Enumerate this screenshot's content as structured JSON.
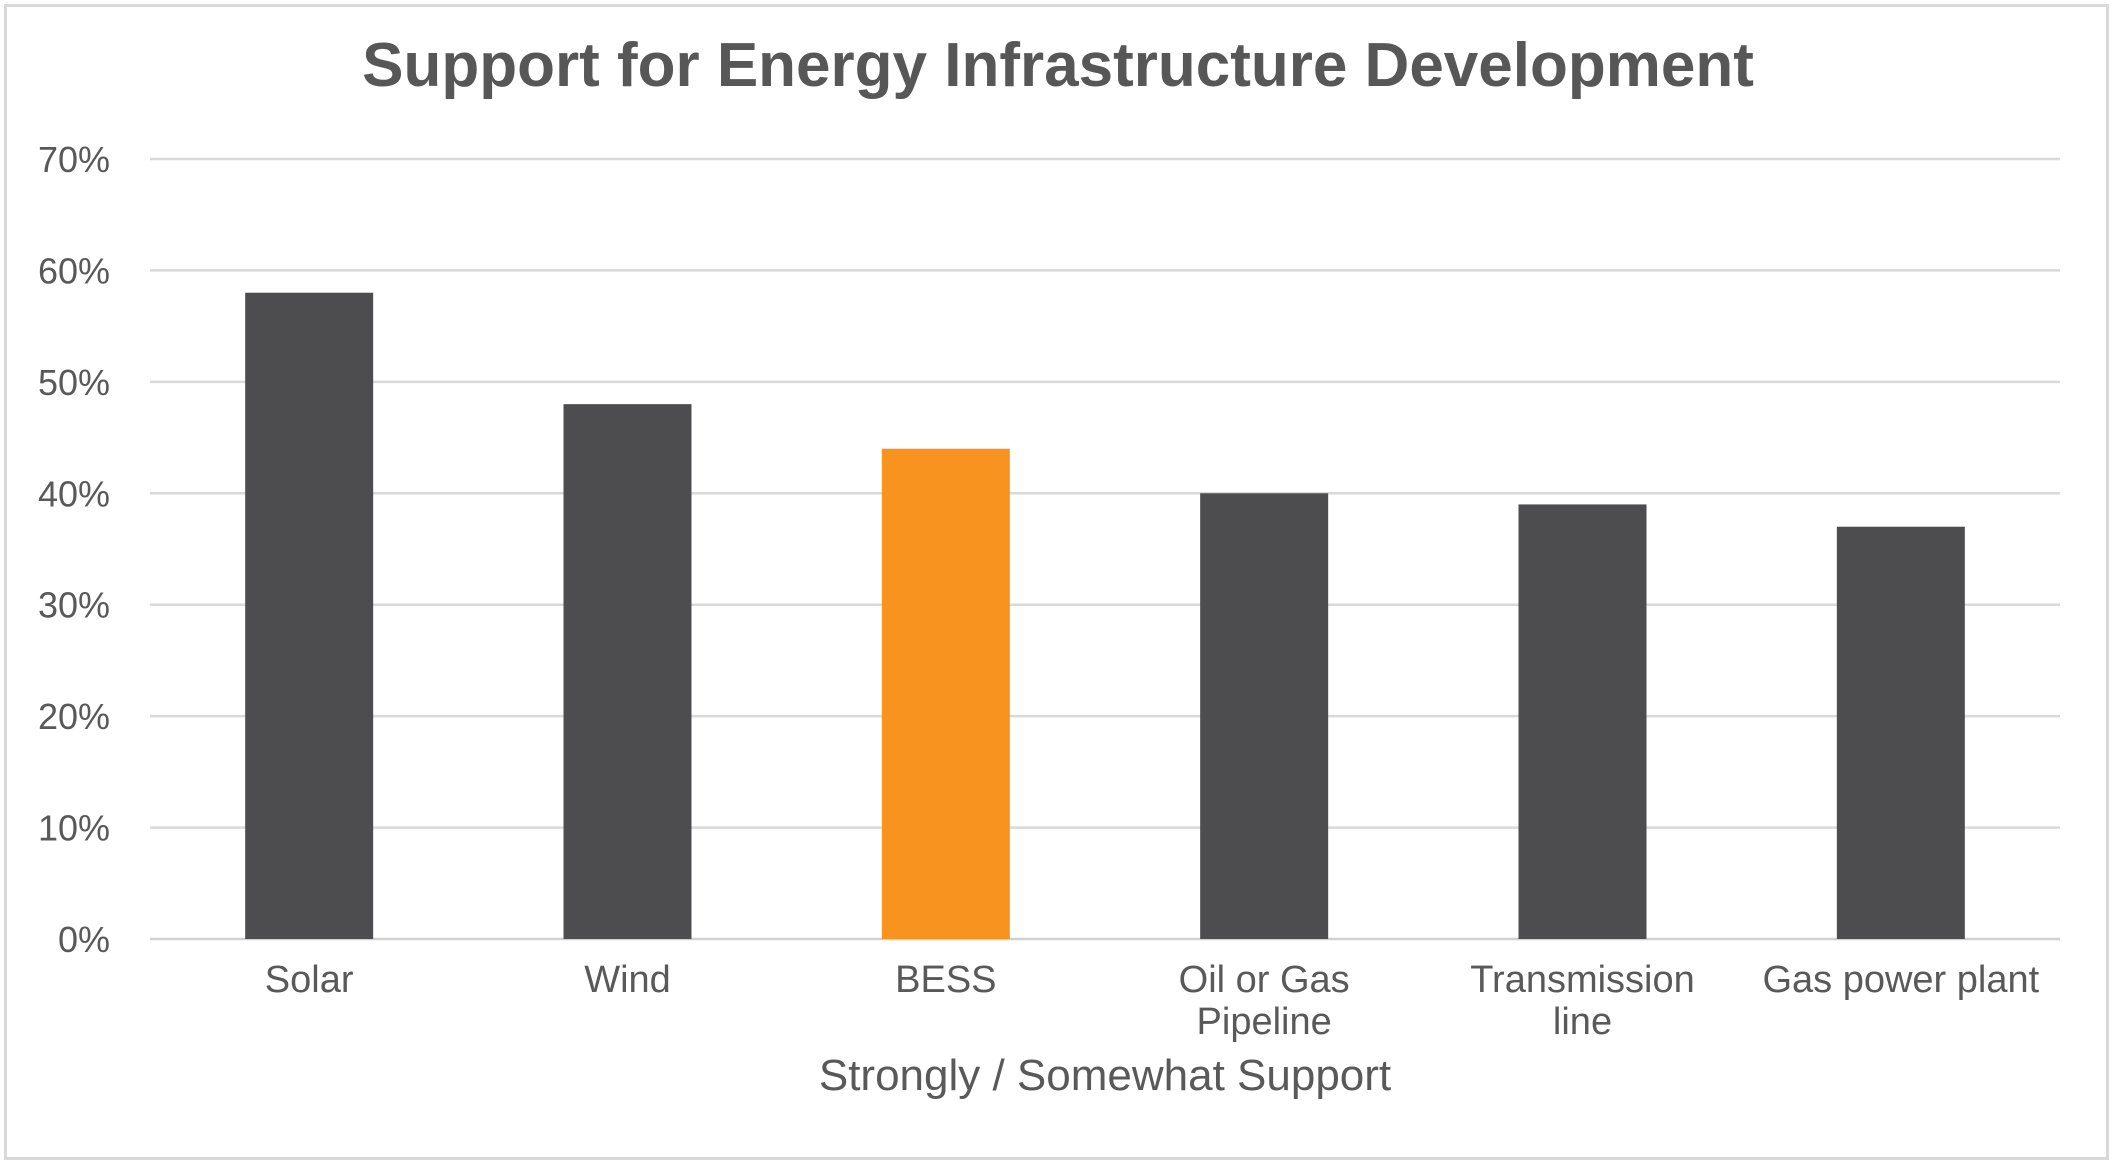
{
  "chart_data": {
    "type": "bar",
    "title": "Support for Energy Infrastructure Development",
    "xlabel": "Strongly / Somewhat Support",
    "ylabel": "",
    "categories": [
      "Solar",
      "Wind",
      "BESS",
      "Oil or Gas Pipeline",
      "Transmission line",
      "Gas power plant"
    ],
    "category_lines": [
      [
        "Solar"
      ],
      [
        "Wind"
      ],
      [
        "BESS"
      ],
      [
        "Oil or Gas",
        "Pipeline"
      ],
      [
        "Transmission",
        "line"
      ],
      [
        "Gas power plant"
      ]
    ],
    "values": [
      0.58,
      0.48,
      0.44,
      0.4,
      0.39,
      0.37
    ],
    "ylim": [
      0,
      0.7
    ],
    "yticks": [
      0,
      0.1,
      0.2,
      0.3,
      0.4,
      0.5,
      0.6,
      0.7
    ],
    "ytick_labels": [
      "0%",
      "10%",
      "20%",
      "30%",
      "40%",
      "50%",
      "60%",
      "70%"
    ],
    "grid": true,
    "legend": "none",
    "colors": {
      "default": "#4d4d4f",
      "highlight": "#f7931e",
      "bars": [
        "#4d4d4f",
        "#4d4d4f",
        "#f7931e",
        "#4d4d4f",
        "#4d4d4f",
        "#4d4d4f"
      ]
    }
  }
}
